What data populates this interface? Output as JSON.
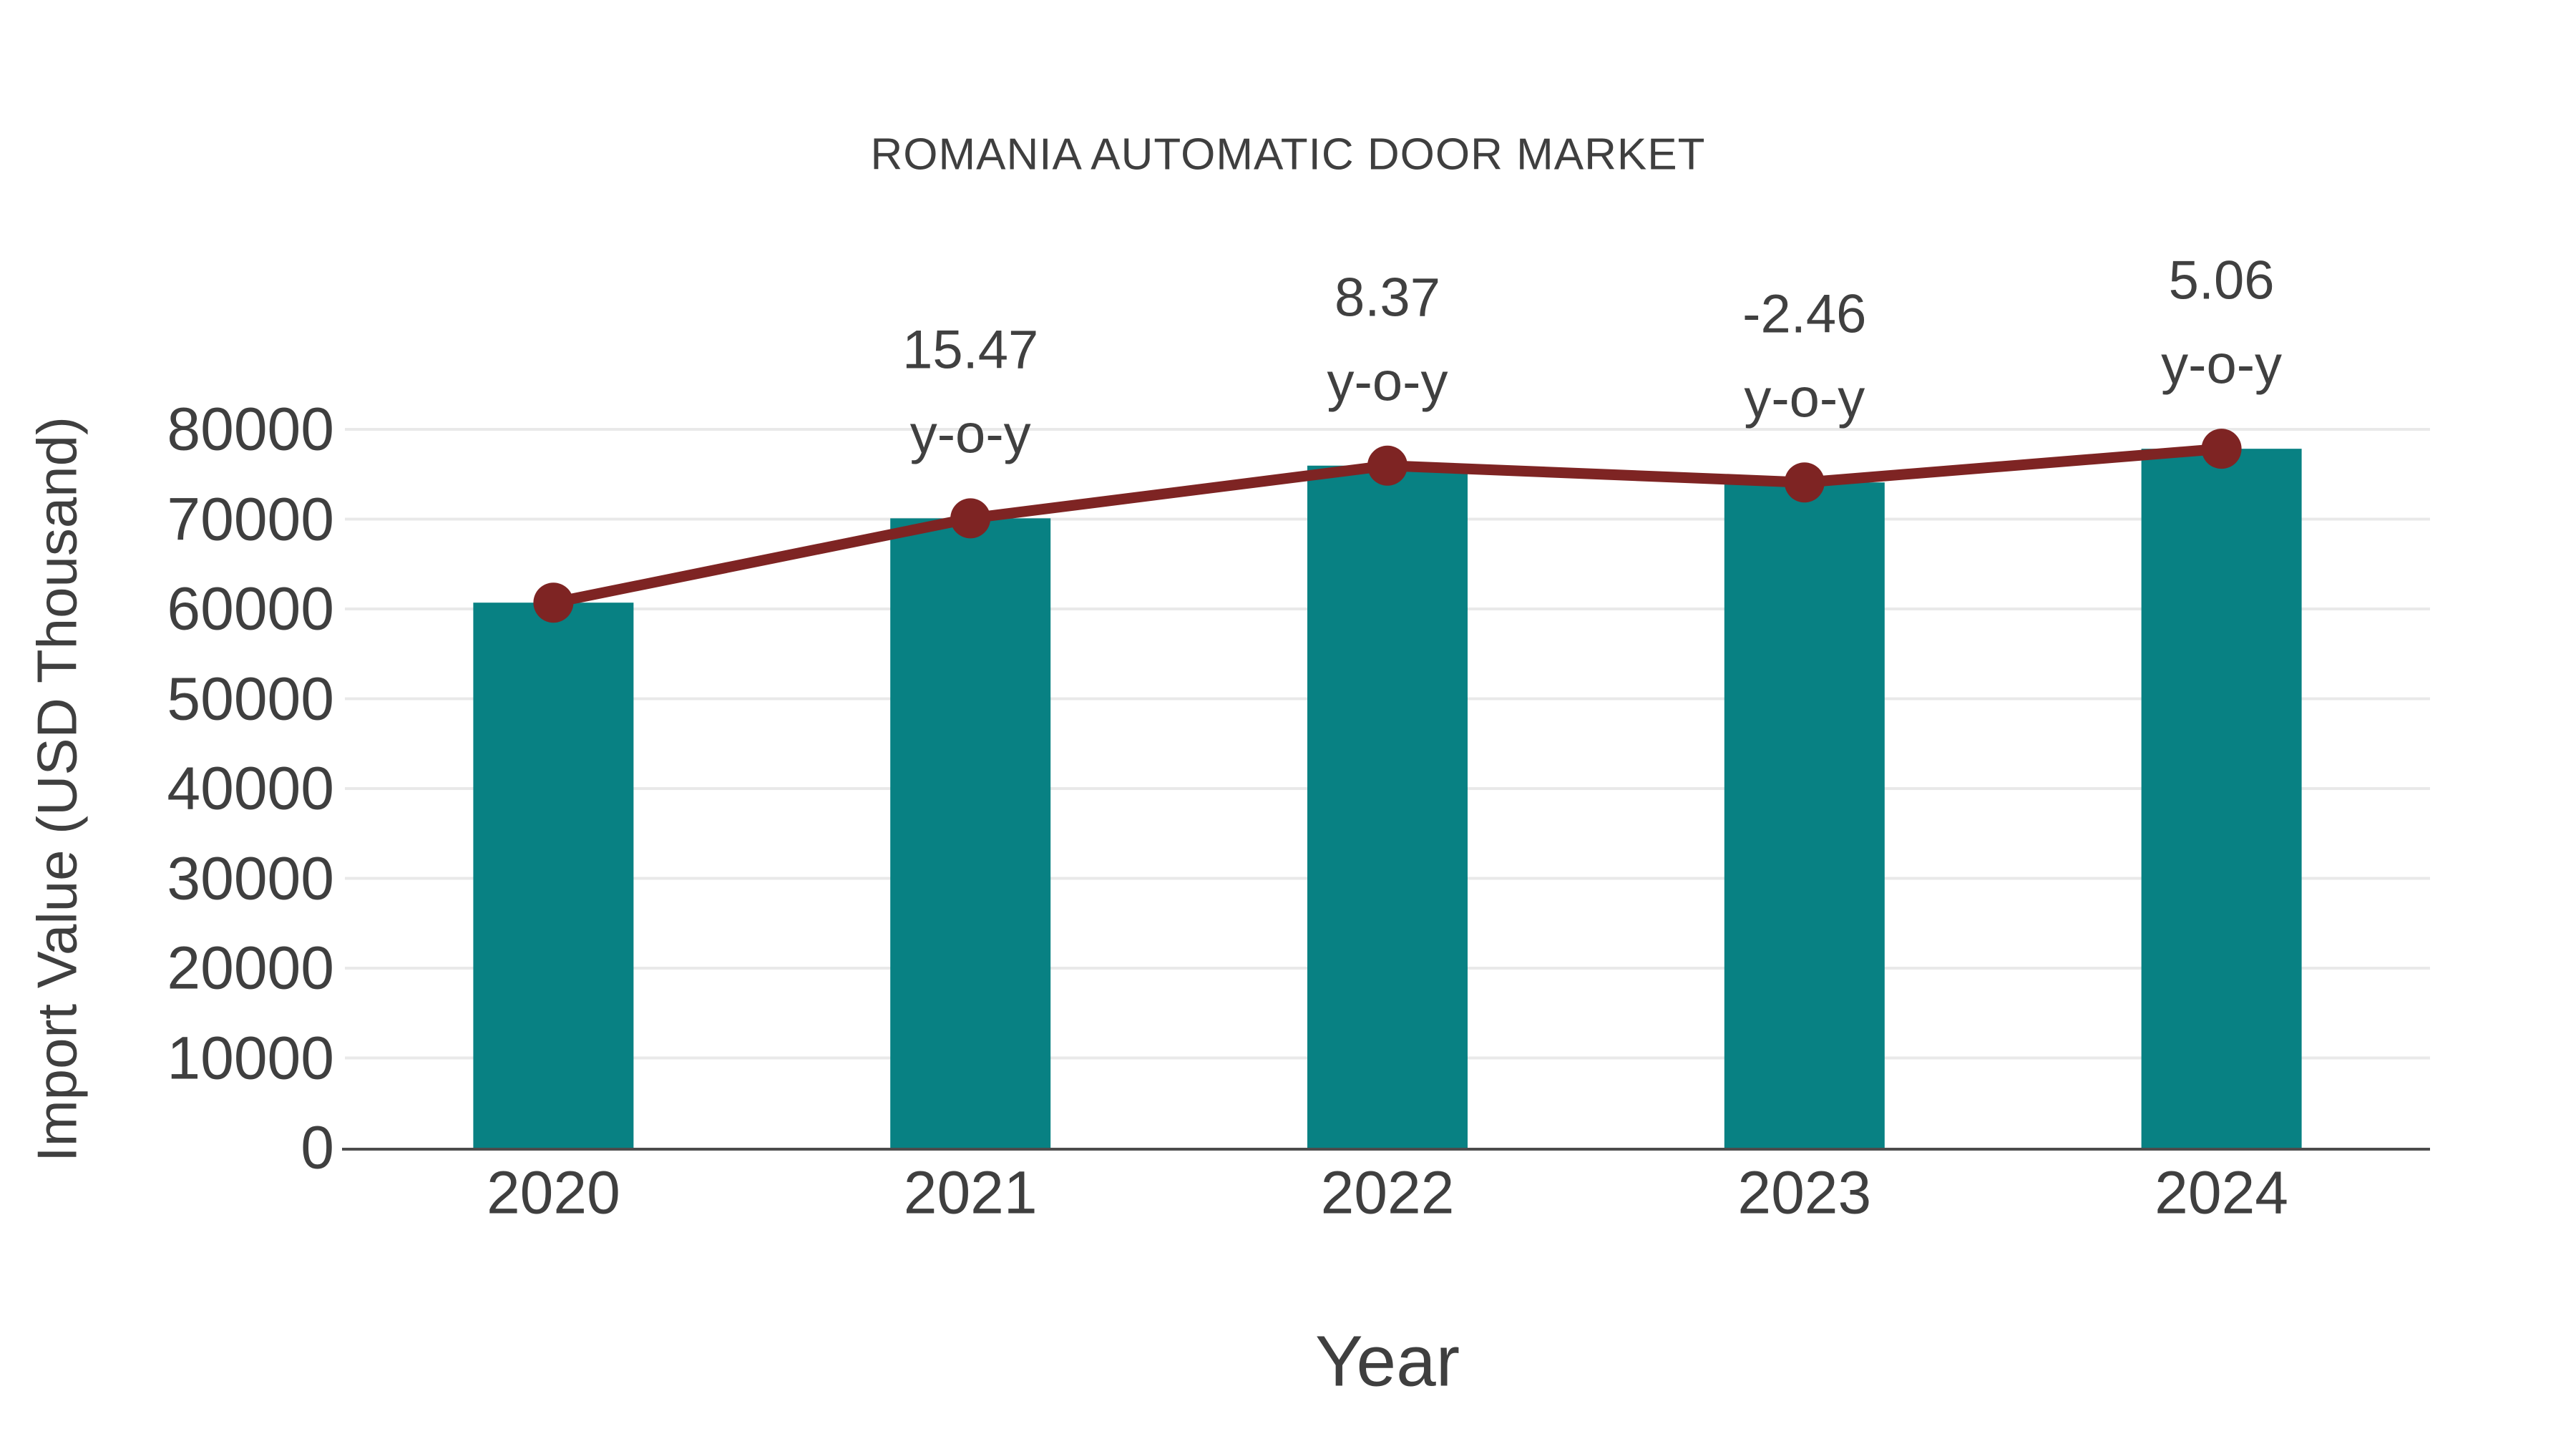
{
  "chart_data": {
    "type": "bar",
    "title": "ROMANIA AUTOMATIC DOOR MARKET",
    "xlabel": "Year",
    "ylabel": "Import Value (USD Thousand)",
    "categories": [
      "2020",
      "2021",
      "2022",
      "2023",
      "2024"
    ],
    "series": [
      {
        "name": "Import Value bars",
        "type": "bar",
        "color": "#088183",
        "values": [
          60700,
          70090,
          75957,
          74088,
          77837
        ]
      },
      {
        "name": "Import Value trend line",
        "type": "line",
        "color": "#7e2423",
        "values": [
          60700,
          70090,
          75957,
          74088,
          77837
        ]
      }
    ],
    "yoy_annotations": [
      {
        "category": "2021",
        "value_label": "15.47",
        "suffix": "y-o-y"
      },
      {
        "category": "2022",
        "value_label": "8.37",
        "suffix": "y-o-y"
      },
      {
        "category": "2023",
        "value_label": "-2.46",
        "suffix": "y-o-y"
      },
      {
        "category": "2024",
        "value_label": "5.06",
        "suffix": "y-o-y"
      }
    ],
    "yticks": [
      "0",
      "10000",
      "20000",
      "30000",
      "40000",
      "50000",
      "60000",
      "70000",
      "80000"
    ],
    "ylim": [
      0,
      80000
    ],
    "grid": "horizontal",
    "legend": "none",
    "colors": {
      "bar": "#088183",
      "line": "#7e2423",
      "marker": "#7e2423",
      "text": "#3f3f3f",
      "grid": "#e9e9e9",
      "axis": "#4c4c4c",
      "background": "#ffffff"
    }
  }
}
